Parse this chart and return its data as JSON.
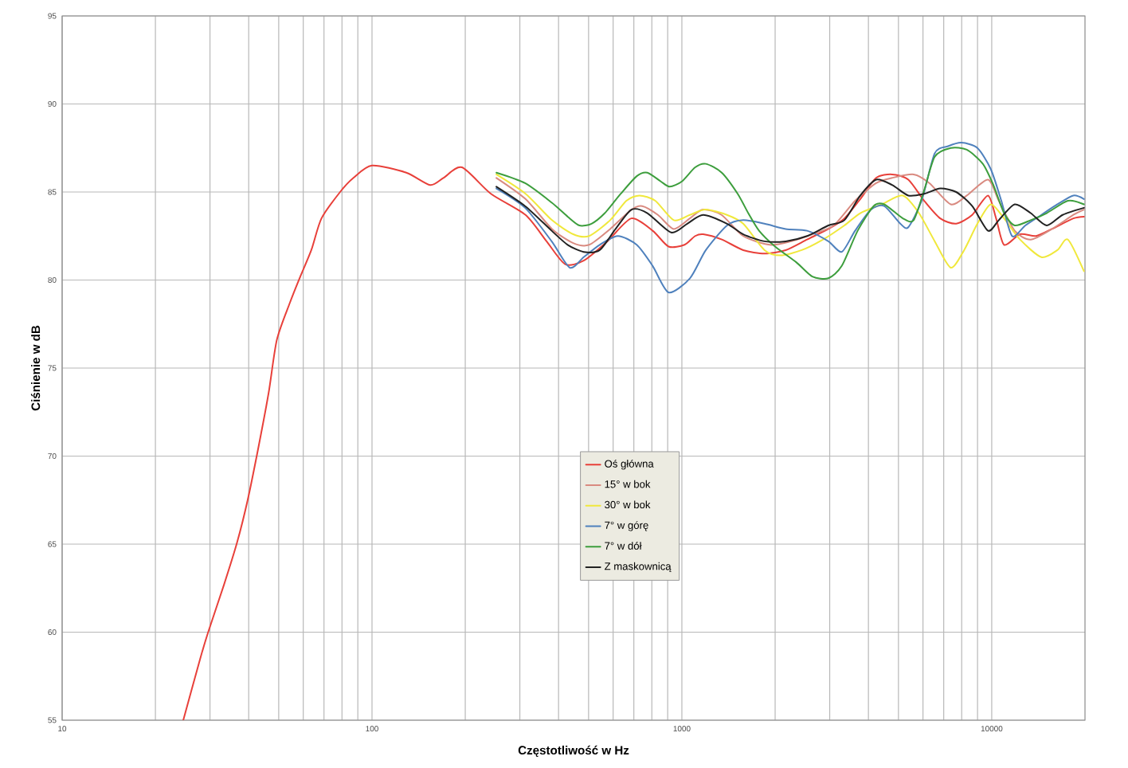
{
  "chart_data": {
    "type": "line",
    "xlabel": "Częstotliwość w Hz",
    "ylabel": "Ciśnienie w dB",
    "log": "x",
    "grid": true,
    "legend": "bottom",
    "xlim": [
      10,
      20000
    ],
    "ylim": [
      55,
      95
    ],
    "xticks": [
      10,
      {
        "value": 20,
        "label": null
      },
      {
        "value": 30,
        "label": null
      },
      {
        "value": 40,
        "label": null
      },
      {
        "value": 50,
        "label": null
      },
      {
        "value": 60,
        "label": null
      },
      {
        "value": 70,
        "label": null
      },
      {
        "value": 80,
        "label": null
      },
      {
        "value": 90,
        "label": null
      },
      100,
      {
        "value": 200,
        "label": null
      },
      {
        "value": 300,
        "label": null
      },
      {
        "value": 400,
        "label": null
      },
      {
        "value": 500,
        "label": null
      },
      {
        "value": 600,
        "label": null
      },
      {
        "value": 700,
        "label": null
      },
      {
        "value": 800,
        "label": null
      },
      {
        "value": 900,
        "label": null
      },
      1000,
      {
        "value": 2000,
        "label": null
      },
      {
        "value": 3000,
        "label": null
      },
      {
        "value": 4000,
        "label": null
      },
      {
        "value": 5000,
        "label": null
      },
      {
        "value": 6000,
        "label": null
      },
      {
        "value": 7000,
        "label": null
      },
      {
        "value": 8000,
        "label": null
      },
      {
        "value": 9000,
        "label": null
      },
      10000
    ],
    "yticks": [
      55,
      60,
      65,
      70,
      75,
      80,
      85,
      90,
      95
    ],
    "series": [
      {
        "name": "Oś główna",
        "color": "#e8403a",
        "x": [
          24.6,
          27.9,
          29.6,
          33.3,
          36.7,
          39.7,
          43,
          46.4,
          49.3,
          54.3,
          58.7,
          63.7,
          68.7,
          78.9,
          87.1,
          100,
          129,
          154,
          170,
          195,
          242,
          313,
          366,
          420,
          482,
          575,
          687,
          805,
          906,
          1020,
          1104,
          1172,
          1346,
          1578,
          1848,
          2164,
          2536,
          2970,
          3345,
          3767,
          4236,
          4770,
          5380,
          6054,
          6820,
          7680,
          8650,
          9727,
          10330,
          10960,
          12340,
          13900,
          15640,
          18340,
          19850
        ],
        "values": [
          55,
          58.5,
          60,
          62.7,
          65.1,
          67.5,
          70.5,
          73.6,
          76.6,
          78.7,
          80.2,
          81.7,
          83.5,
          85,
          85.8,
          86.5,
          86.1,
          85.4,
          85.8,
          86.4,
          84.9,
          83.7,
          82.2,
          80.9,
          81.1,
          82.2,
          83.5,
          82.8,
          81.9,
          82.0,
          82.5,
          82.6,
          82.3,
          81.7,
          81.5,
          81.7,
          82.3,
          82.9,
          83.5,
          84.6,
          85.8,
          86,
          85.7,
          84.5,
          83.5,
          83.2,
          83.7,
          84.8,
          83.5,
          82,
          82.6,
          82.5,
          82.9,
          83.5,
          83.6
        ]
      },
      {
        "name": "15° w bok",
        "color": "#d98a80",
        "x": [
          252,
          313,
          381,
          446,
          502,
          587,
          688,
          745,
          837,
          942,
          1061,
          1170,
          1343,
          1578,
          1923,
          2254,
          2637,
          3090,
          3623,
          4235,
          4770,
          5598,
          6297,
          7379,
          8310,
          9727,
          10540,
          11860,
          13360,
          15640,
          18340,
          19850
        ],
        "values": [
          85.8,
          84.6,
          82.9,
          82.1,
          82.0,
          82.9,
          84.0,
          84.2,
          83.7,
          82.9,
          83.5,
          84.0,
          83.7,
          82.5,
          82.0,
          82.2,
          82.6,
          83.1,
          84.5,
          85.5,
          85.8,
          86.0,
          85.5,
          84.3,
          84.8,
          85.7,
          84.5,
          82.8,
          82.3,
          82.9,
          83.7,
          84.0
        ]
      },
      {
        "name": "30° w bok",
        "color": "#f0e83c",
        "x": [
          252,
          313,
          381,
          446,
          502,
          587,
          662,
          730,
          821,
          942,
          1061,
          1194,
          1398,
          1578,
          1848,
          2080,
          2437,
          2856,
          3345,
          3767,
          4412,
          5168,
          5823,
          6548,
          7379,
          8147,
          8990,
          9930,
          10960,
          12340,
          14460,
          16290,
          17620,
          19850
        ],
        "values": [
          86.0,
          84.9,
          83.4,
          82.6,
          82.5,
          83.4,
          84.5,
          84.8,
          84.5,
          83.4,
          83.7,
          84.0,
          83.7,
          83.2,
          81.7,
          81.4,
          81.7,
          82.3,
          83.1,
          83.8,
          84.3,
          84.8,
          83.8,
          82.2,
          80.7,
          81.7,
          83.2,
          84.3,
          83.5,
          82.3,
          81.3,
          81.7,
          82.3,
          80.5
        ]
      },
      {
        "name": "7° w górę",
        "color": "#4f81bd",
        "x": [
          252,
          312,
          380,
          435,
          482,
          543,
          622,
          715,
          805,
          906,
          1062,
          1195,
          1399,
          1578,
          1848,
          2164,
          2536,
          2970,
          3281,
          3623,
          4077,
          4497,
          5070,
          5380,
          5937,
          6548,
          7230,
          7983,
          8990,
          9930,
          10740,
          11630,
          12840,
          14460,
          16290,
          18340,
          19850
        ],
        "values": [
          85.2,
          84.1,
          82.2,
          80.7,
          81.3,
          82.0,
          82.5,
          82.0,
          80.8,
          79.3,
          80.1,
          81.7,
          83.1,
          83.4,
          83.2,
          82.9,
          82.8,
          82.2,
          81.6,
          82.8,
          84.0,
          84.2,
          83.2,
          83.0,
          84.5,
          87.2,
          87.6,
          87.8,
          87.5,
          86.3,
          84.5,
          82.5,
          83.1,
          83.7,
          84.3,
          84.8,
          84.6
        ]
      },
      {
        "name": "7° w dół",
        "color": "#3d9e3d",
        "x": [
          252,
          312,
          380,
          428,
          467,
          511,
          564,
          635,
          715,
          774,
          855,
          914,
          1000,
          1104,
          1195,
          1345,
          1514,
          1638,
          1775,
          2000,
          2343,
          2637,
          2970,
          3281,
          3693,
          4156,
          4497,
          5168,
          5598,
          6054,
          6548,
          7379,
          8310,
          9360,
          10120,
          10960,
          11860,
          13360,
          15040,
          17620,
          19850
        ],
        "values": [
          86.1,
          85.5,
          84.4,
          83.6,
          83.1,
          83.2,
          83.8,
          84.9,
          85.9,
          86.1,
          85.6,
          85.3,
          85.6,
          86.4,
          86.6,
          86.1,
          84.9,
          83.8,
          82.8,
          81.9,
          81.0,
          80.2,
          80.1,
          80.8,
          82.8,
          84.2,
          84.3,
          83.5,
          83.4,
          85.1,
          87.0,
          87.5,
          87.4,
          86.6,
          85.4,
          83.8,
          83.1,
          83.4,
          83.8,
          84.5,
          84.3
        ]
      },
      {
        "name": "Z maskownicą",
        "color": "#222222",
        "x": [
          252,
          312,
          380,
          428,
          482,
          543,
          611,
          688,
          774,
          924,
          1041,
          1172,
          1399,
          1578,
          1848,
          2164,
          2536,
          2970,
          3345,
          3767,
          4236,
          4770,
          5380,
          6054,
          6820,
          7680,
          8650,
          9727,
          10540,
          11860,
          13360,
          15040,
          16940,
          19850
        ],
        "values": [
          85.3,
          84.2,
          82.8,
          82.0,
          81.6,
          81.7,
          82.9,
          84.0,
          83.8,
          82.7,
          83.2,
          83.7,
          83.2,
          82.6,
          82.2,
          82.2,
          82.5,
          83.1,
          83.4,
          84.8,
          85.7,
          85.4,
          84.8,
          84.9,
          85.2,
          85.0,
          84.2,
          82.8,
          83.4,
          84.3,
          83.8,
          83.1,
          83.7,
          84.1
        ]
      }
    ]
  }
}
